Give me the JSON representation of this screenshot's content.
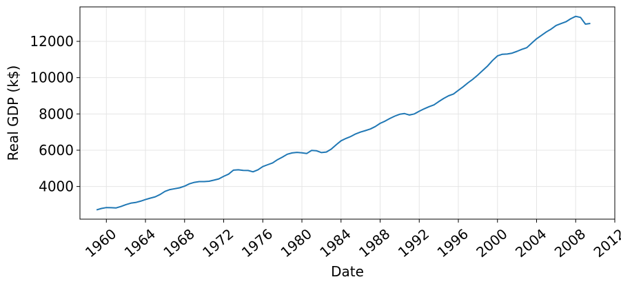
{
  "chart_data": {
    "type": "line",
    "xlabel": "Date",
    "ylabel": "Real GDP (k$)",
    "xlim": [
      1957.3,
      2012.0
    ],
    "ylim": [
      2200,
      13900
    ],
    "grid": true,
    "x_ticks": [
      1960,
      1964,
      1968,
      1972,
      1976,
      1980,
      1984,
      1988,
      1992,
      1996,
      2000,
      2004,
      2008,
      2012
    ],
    "x_tick_labels": [
      "1960",
      "1964",
      "1968",
      "1972",
      "1976",
      "1980",
      "1984",
      "1988",
      "1992",
      "1996",
      "2000",
      "2004",
      "2008",
      "2012"
    ],
    "y_ticks": [
      4000,
      6000,
      8000,
      10000,
      12000
    ],
    "y_tick_labels": [
      "4000",
      "6000",
      "8000",
      "10000",
      "12000"
    ],
    "series": [
      {
        "color": "#1f77b4",
        "x": [
          1959.0,
          1959.5,
          1960.0,
          1960.5,
          1961.0,
          1961.5,
          1962.0,
          1962.5,
          1963.0,
          1963.5,
          1964.0,
          1964.5,
          1965.0,
          1965.5,
          1966.0,
          1966.5,
          1967.0,
          1967.5,
          1968.0,
          1968.5,
          1969.0,
          1969.5,
          1970.0,
          1970.5,
          1971.0,
          1971.5,
          1972.0,
          1972.5,
          1973.0,
          1973.5,
          1974.0,
          1974.5,
          1975.0,
          1975.5,
          1976.0,
          1976.5,
          1977.0,
          1977.5,
          1978.0,
          1978.5,
          1979.0,
          1979.5,
          1980.0,
          1980.5,
          1981.0,
          1981.5,
          1982.0,
          1982.5,
          1983.0,
          1983.5,
          1984.0,
          1984.5,
          1985.0,
          1985.5,
          1986.0,
          1986.5,
          1987.0,
          1987.5,
          1988.0,
          1988.5,
          1989.0,
          1989.5,
          1990.0,
          1990.5,
          1991.0,
          1991.5,
          1992.0,
          1992.5,
          1993.0,
          1993.5,
          1994.0,
          1994.5,
          1995.0,
          1995.5,
          1996.0,
          1996.5,
          1997.0,
          1997.5,
          1998.0,
          1998.5,
          1999.0,
          1999.5,
          2000.0,
          2000.5,
          2001.0,
          2001.5,
          2002.0,
          2002.5,
          2003.0,
          2003.5,
          2004.0,
          2004.5,
          2005.0,
          2005.5,
          2006.0,
          2006.5,
          2007.0,
          2007.5,
          2008.0,
          2008.5,
          2009.0,
          2009.5
        ],
        "y": [
          2710,
          2790,
          2840,
          2830,
          2820,
          2900,
          3000,
          3080,
          3120,
          3190,
          3280,
          3360,
          3430,
          3560,
          3730,
          3830,
          3880,
          3930,
          4020,
          4150,
          4230,
          4270,
          4270,
          4290,
          4350,
          4420,
          4560,
          4680,
          4900,
          4920,
          4890,
          4880,
          4810,
          4920,
          5100,
          5200,
          5300,
          5480,
          5620,
          5780,
          5850,
          5880,
          5860,
          5820,
          5990,
          5970,
          5870,
          5900,
          6060,
          6300,
          6520,
          6650,
          6760,
          6900,
          7000,
          7080,
          7170,
          7300,
          7480,
          7600,
          7750,
          7880,
          7980,
          8020,
          7940,
          8000,
          8150,
          8280,
          8400,
          8500,
          8680,
          8850,
          9000,
          9100,
          9300,
          9500,
          9720,
          9920,
          10150,
          10400,
          10650,
          10950,
          11200,
          11290,
          11300,
          11350,
          11450,
          11560,
          11650,
          11900,
          12140,
          12330,
          12520,
          12680,
          12880,
          12980,
          13080,
          13250,
          13380,
          13320,
          12950,
          12990
        ]
      }
    ]
  }
}
